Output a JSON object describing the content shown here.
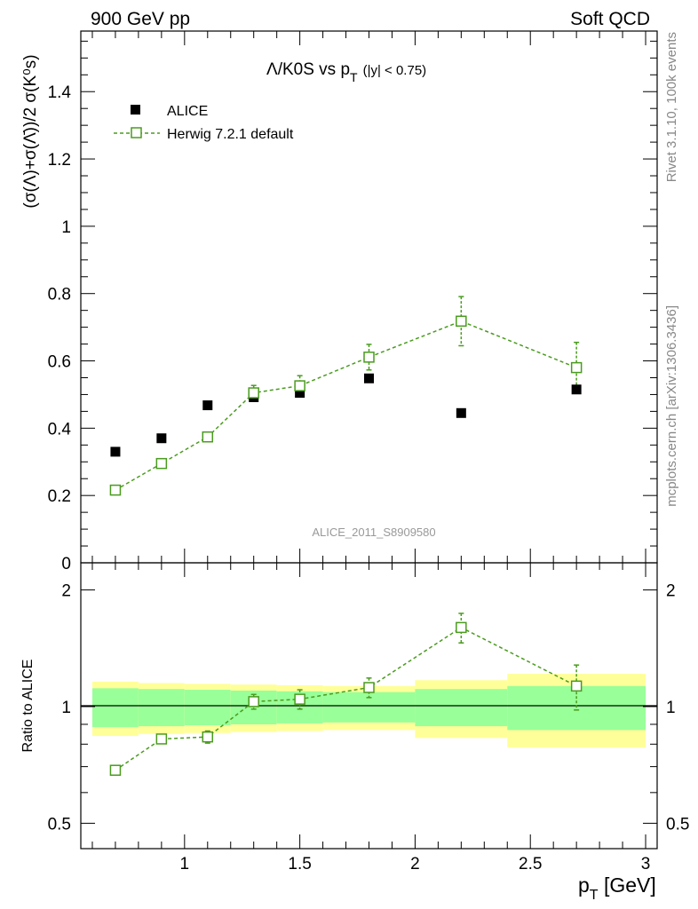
{
  "header": {
    "left": "900 GeV pp",
    "right": "Soft QCD"
  },
  "side_labels": {
    "rivet": "Rivet 3.1.10,  100k events",
    "mcplots": "mcplots.cern.ch [arXiv:1306.3436]"
  },
  "watermark": "ALICE_2011_S8909580",
  "colors": {
    "mc": "#4a9b1e",
    "band_inner": "#99ff99",
    "band_outer": "#ffff99",
    "data": "#000000"
  },
  "chart_data": [
    {
      "type": "scatter",
      "title": "Λ/K0S vs p_T (|y| < 0.75)",
      "title_parts": {
        "main": "Λ/K0S vs p",
        "sub": "T",
        "cut": "(|y| < 0.75)"
      },
      "ylabel": "(σ(Λ)+σ(Λ̄))/2 σ(K⁰s)",
      "xlim": [
        0.55,
        3.05
      ],
      "ylim": [
        0,
        1.58
      ],
      "yticks": [
        0,
        0.2,
        0.4,
        0.6,
        0.8,
        1,
        1.2,
        1.4
      ],
      "ytick_labels": [
        "0",
        "0.2",
        "0.4",
        "0.6",
        "0.8",
        "1",
        "1.2",
        "1.4"
      ],
      "legend": {
        "position": "top-left",
        "entries": [
          "ALICE",
          "Herwig 7.2.1 default"
        ]
      },
      "series": [
        {
          "name": "ALICE",
          "marker": "filled-square",
          "x": [
            0.7,
            0.9,
            1.1,
            1.3,
            1.5,
            1.8,
            2.2,
            2.7
          ],
          "y": [
            0.33,
            0.37,
            0.468,
            0.492,
            0.505,
            0.548,
            0.445,
            0.515
          ]
        },
        {
          "name": "Herwig 7.2.1 default",
          "marker": "open-square",
          "line": "dashed",
          "x": [
            0.7,
            0.9,
            1.1,
            1.3,
            1.5,
            1.8,
            2.2,
            2.7
          ],
          "y": [
            0.216,
            0.295,
            0.374,
            0.505,
            0.526,
            0.611,
            0.718,
            0.58
          ],
          "yerr": [
            0.005,
            0.007,
            0.009,
            0.022,
            0.03,
            0.038,
            0.073,
            0.075
          ]
        }
      ]
    },
    {
      "type": "scatter",
      "ylabel": "Ratio to ALICE",
      "xlabel": "p_T [GeV]",
      "xlabel_parts": {
        "main": "p",
        "sub": "T",
        "unit": " [GeV]"
      },
      "xlim": [
        0.55,
        3.05
      ],
      "ylim": [
        0.43,
        2.35
      ],
      "ylog": true,
      "yticks": [
        0.5,
        1,
        2
      ],
      "ytick_labels": [
        "0.5",
        "1",
        "2"
      ],
      "xticks": [
        1,
        1.5,
        2,
        2.5,
        3
      ],
      "xtick_labels": [
        "1",
        "1.5",
        "2",
        "2.5",
        "3"
      ],
      "bands": {
        "edges": [
          0.6,
          0.8,
          1.0,
          1.2,
          1.4,
          1.6,
          2.0,
          2.4,
          3.0
        ],
        "inner": [
          0.115,
          0.11,
          0.105,
          0.1,
          0.095,
          0.09,
          0.11,
          0.13
        ],
        "outer": [
          0.16,
          0.15,
          0.145,
          0.14,
          0.135,
          0.13,
          0.17,
          0.215
        ]
      },
      "series": [
        {
          "name": "Herwig 7.2.1 default / ALICE",
          "x": [
            0.7,
            0.9,
            1.1,
            1.3,
            1.5,
            1.8,
            2.2,
            2.7
          ],
          "y": [
            0.685,
            0.825,
            0.835,
            1.03,
            1.045,
            1.12,
            1.6,
            1.13
          ],
          "yerr": [
            0.015,
            0.02,
            0.03,
            0.045,
            0.06,
            0.065,
            0.14,
            0.15
          ]
        }
      ]
    }
  ]
}
